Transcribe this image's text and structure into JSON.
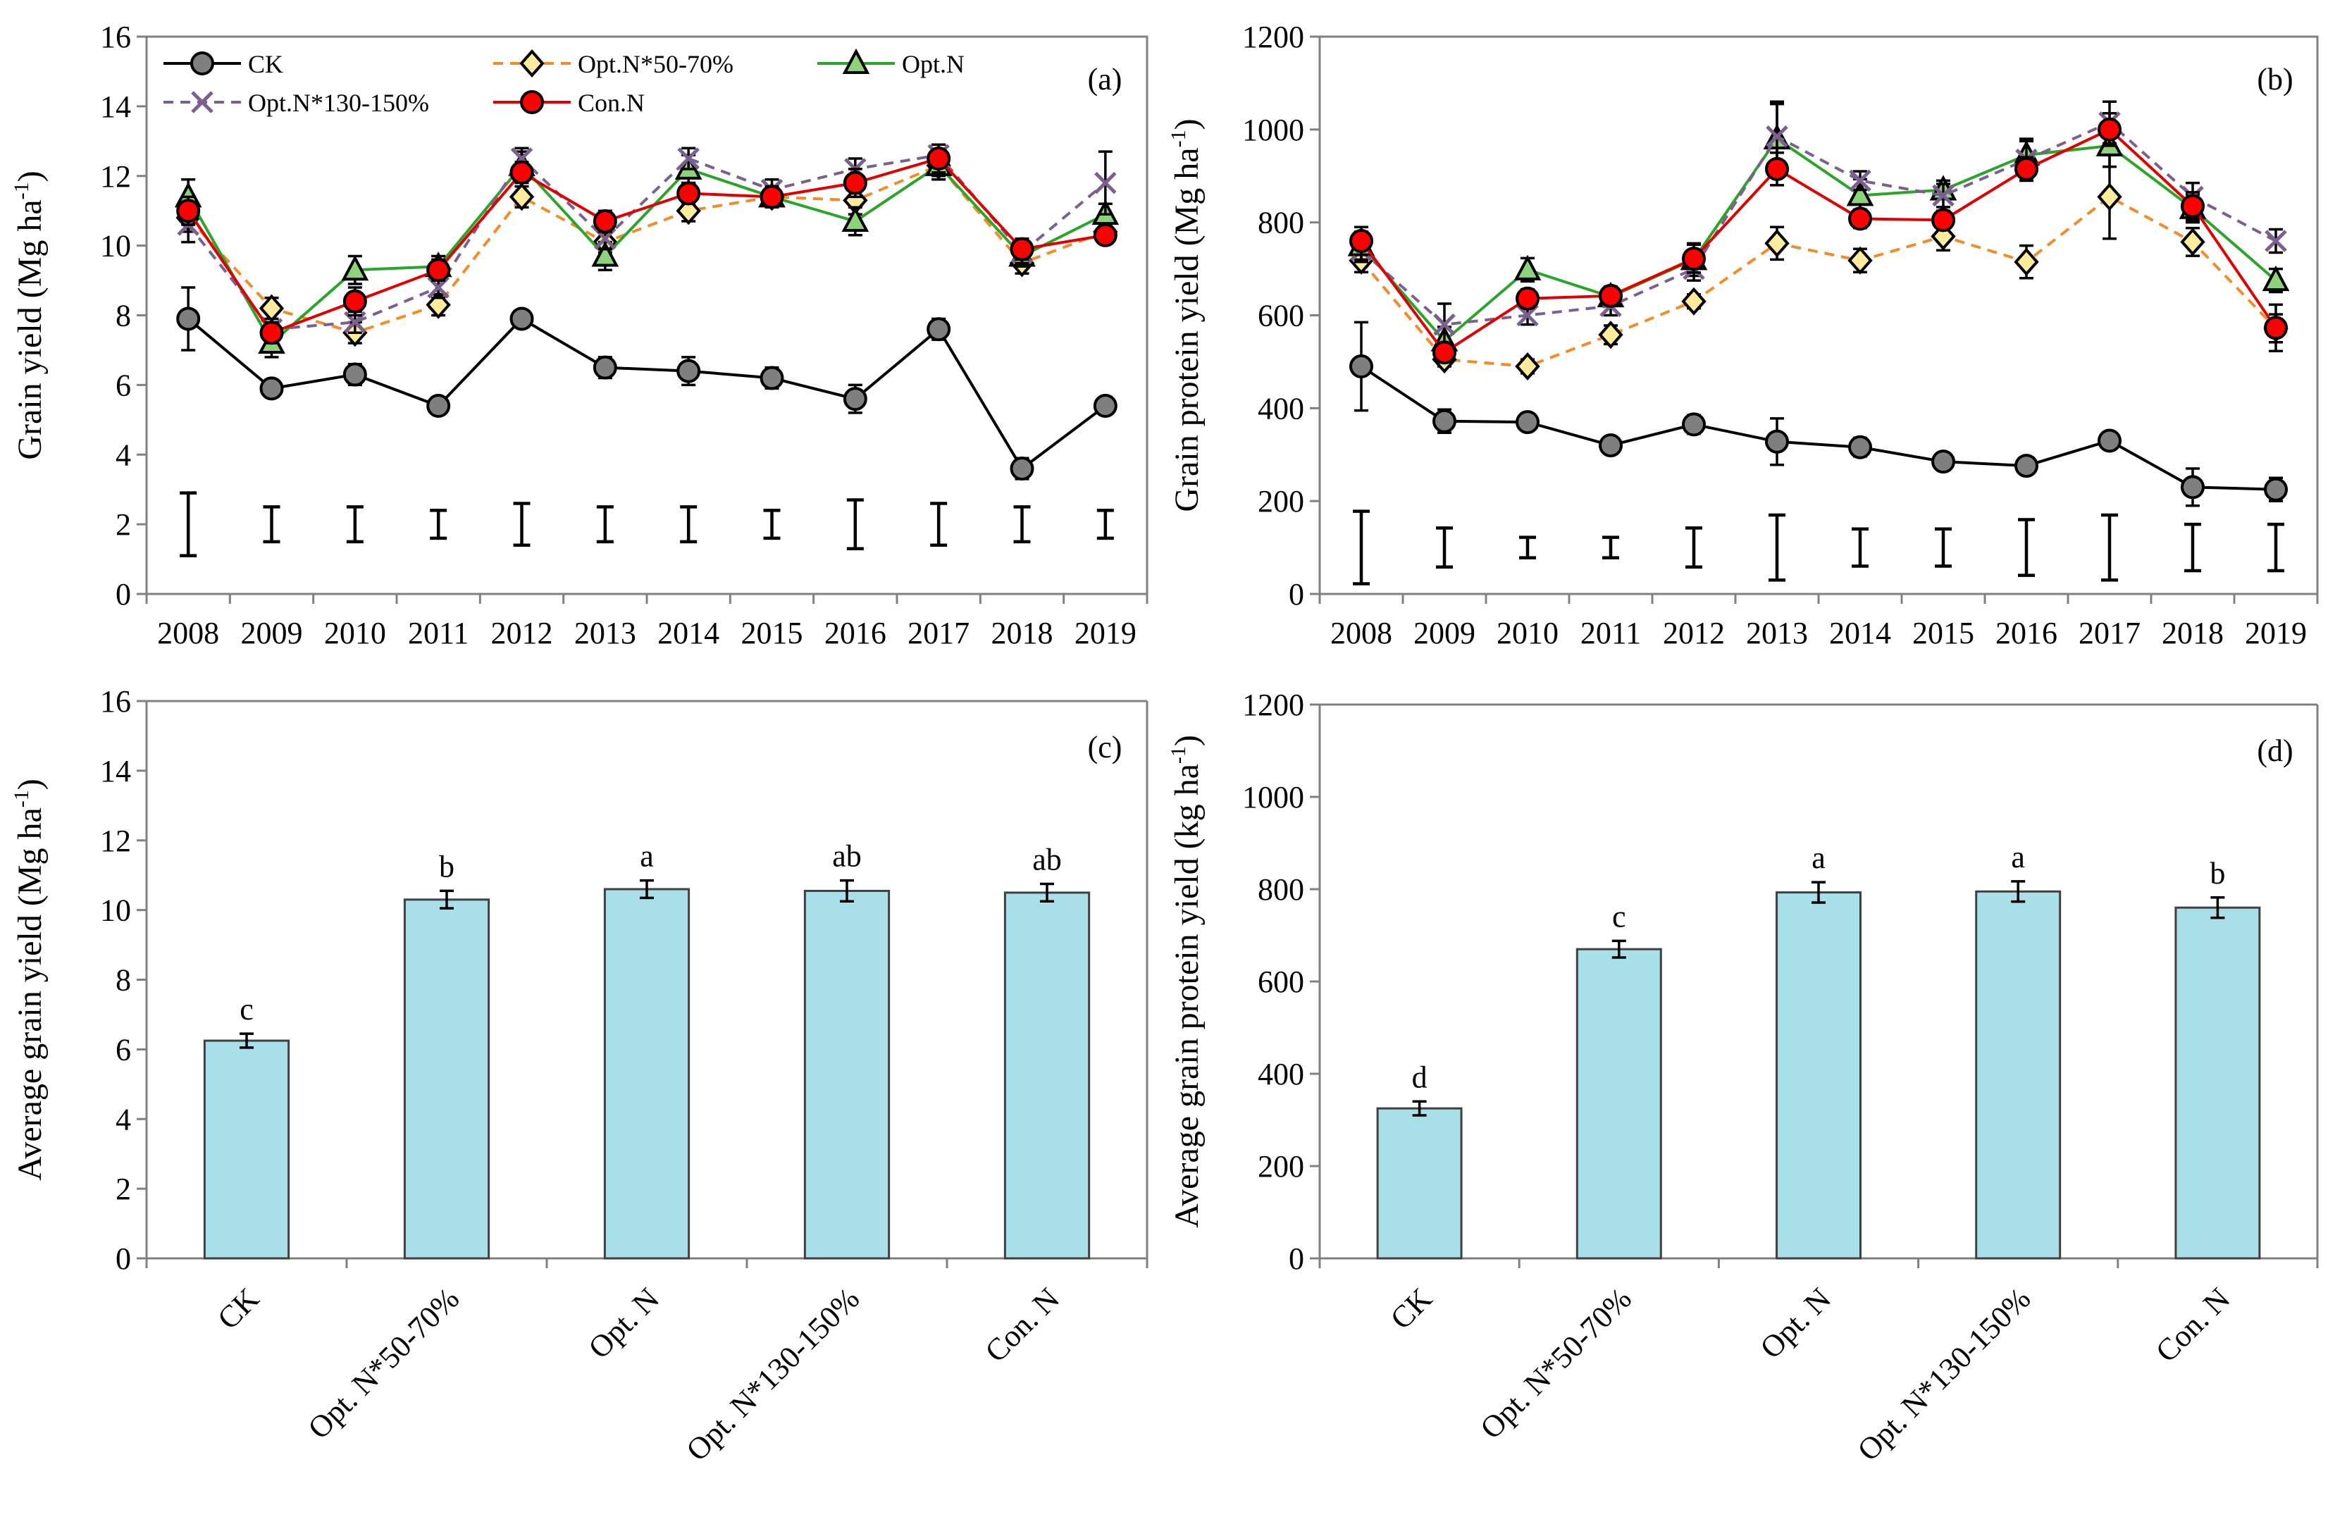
{
  "colors": {
    "ck": "#7f7f7f",
    "low": "#ffeb9c",
    "low_line": "#f28c28",
    "opt": "#8fd27c",
    "opt_line": "#2aa52a",
    "high": "#7a5f8f",
    "con": "#ff0000",
    "con_line": "#e00000",
    "bar": "#a8dfe8",
    "axis": "#808080",
    "black": "#000000"
  },
  "chart_data": [
    {
      "id": "a",
      "type": "line",
      "panel_label": "(a)",
      "ylabel_main": "Grain yield (Mg ha",
      "ylabel_sup": "-1",
      "ylabel_close": ")",
      "ylim": [
        0,
        16
      ],
      "yticks": [
        "0",
        "2",
        "4",
        "6",
        "8",
        "10",
        "12",
        "14",
        "16"
      ],
      "categories": [
        "2008",
        "2009",
        "2010",
        "2011",
        "2012",
        "2013",
        "2014",
        "2015",
        "2016",
        "2017",
        "2018",
        "2019"
      ],
      "series": [
        {
          "name": "CK",
          "values": [
            7.9,
            5.9,
            6.3,
            5.4,
            7.9,
            6.5,
            6.4,
            6.2,
            5.6,
            7.6,
            3.6,
            5.4
          ],
          "err": [
            0.9,
            0.25,
            0.3,
            0.1,
            0.15,
            0.3,
            0.4,
            0.3,
            0.4,
            0.3,
            0.3,
            0.1
          ]
        },
        {
          "name": "Opt.N*50-70%",
          "values": [
            10.8,
            8.2,
            7.5,
            8.3,
            11.4,
            10.1,
            11.0,
            11.4,
            11.3,
            12.3,
            9.5,
            10.4
          ],
          "err": [
            0.4,
            0.3,
            0.3,
            0.3,
            0.3,
            0.3,
            0.3,
            0.3,
            0.4,
            0.3,
            0.3,
            0.3
          ]
        },
        {
          "name": "Opt.N",
          "values": [
            11.4,
            7.2,
            9.3,
            9.4,
            12.3,
            9.7,
            12.2,
            11.4,
            10.7,
            12.3,
            9.7,
            10.9
          ],
          "err": [
            0.5,
            0.4,
            0.4,
            0.3,
            0.4,
            0.4,
            0.4,
            0.3,
            0.4,
            0.4,
            0.3,
            0.3
          ]
        },
        {
          "name": "Opt.N*130-150%",
          "values": [
            10.6,
            7.6,
            7.8,
            8.8,
            12.5,
            10.2,
            12.5,
            11.6,
            12.2,
            12.6,
            9.8,
            11.8
          ],
          "err": [
            0.5,
            0.3,
            0.3,
            0.3,
            0.3,
            0.3,
            0.3,
            0.3,
            0.3,
            0.3,
            0.3,
            0.9
          ]
        },
        {
          "name": "Con.N",
          "values": [
            11.0,
            7.5,
            8.4,
            9.3,
            12.1,
            10.7,
            11.5,
            11.4,
            11.8,
            12.5,
            9.9,
            10.3
          ],
          "err": [
            0.4,
            0.3,
            0.4,
            0.3,
            0.3,
            0.3,
            0.3,
            0.3,
            0.4,
            0.4,
            0.3,
            0.2
          ]
        }
      ],
      "lsd": [
        [
          1.1,
          2.9
        ],
        [
          1.5,
          2.5
        ],
        [
          1.5,
          2.5
        ],
        [
          1.6,
          2.4
        ],
        [
          1.4,
          2.6
        ],
        [
          1.5,
          2.5
        ],
        [
          1.5,
          2.5
        ],
        [
          1.6,
          2.4
        ],
        [
          1.3,
          2.7
        ],
        [
          1.4,
          2.6
        ],
        [
          1.5,
          2.5
        ],
        [
          1.6,
          2.4
        ]
      ]
    },
    {
      "id": "b",
      "type": "line",
      "panel_label": "(b)",
      "ylabel_main": "Grain protein yield (Mg ha",
      "ylabel_sup": "-1",
      "ylabel_close": ")",
      "ylim": [
        0,
        1200
      ],
      "yticks": [
        "0",
        "200",
        "400",
        "600",
        "800",
        "1000",
        "1200"
      ],
      "categories": [
        "2008",
        "2009",
        "2010",
        "2011",
        "2012",
        "2013",
        "2014",
        "2015",
        "2016",
        "2017",
        "2018",
        "2019"
      ],
      "series": [
        {
          "name": "CK",
          "values": [
            490,
            372,
            370,
            320,
            365,
            328,
            316,
            285,
            276,
            330,
            230,
            225
          ],
          "err": [
            95,
            25,
            10,
            10,
            20,
            50,
            20,
            15,
            10,
            10,
            40,
            25
          ]
        },
        {
          "name": "Opt.N*50-70%",
          "values": [
            718,
            505,
            490,
            558,
            630,
            755,
            718,
            770,
            715,
            855,
            758,
            572
          ],
          "err": [
            25,
            15,
            15,
            20,
            15,
            35,
            25,
            30,
            35,
            90,
            30,
            30
          ]
        },
        {
          "name": "Opt.N",
          "values": [
            750,
            545,
            698,
            640,
            720,
            980,
            858,
            870,
            945,
            965,
            830,
            675
          ],
          "err": [
            30,
            30,
            25,
            20,
            35,
            75,
            35,
            20,
            30,
            45,
            30,
            25
          ]
        },
        {
          "name": "Opt.N*130-150%",
          "values": [
            740,
            580,
            600,
            620,
            700,
            985,
            890,
            858,
            935,
            1015,
            855,
            760
          ],
          "err": [
            25,
            45,
            20,
            20,
            25,
            75,
            20,
            25,
            45,
            45,
            30,
            25
          ]
        },
        {
          "name": "Con.N",
          "values": [
            760,
            520,
            636,
            642,
            722,
            915,
            808,
            805,
            915,
            1000,
            835,
            573
          ],
          "err": [
            30,
            20,
            20,
            20,
            30,
            35,
            20,
            20,
            25,
            35,
            30,
            50
          ]
        }
      ],
      "lsd": [
        [
          22,
          178
        ],
        [
          58,
          142
        ],
        [
          78,
          122
        ],
        [
          78,
          122
        ],
        [
          58,
          142
        ],
        [
          30,
          170
        ],
        [
          60,
          140
        ],
        [
          60,
          140
        ],
        [
          40,
          160
        ],
        [
          30,
          170
        ],
        [
          50,
          150
        ],
        [
          50,
          150
        ]
      ]
    },
    {
      "id": "c",
      "type": "bar",
      "panel_label": "(c)",
      "ylabel_main": "Average grain yield (Mg ha",
      "ylabel_sup": "-1",
      "ylabel_close": ")",
      "ylim": [
        0,
        16
      ],
      "yticks": [
        "0",
        "2",
        "4",
        "6",
        "8",
        "10",
        "12",
        "14",
        "16"
      ],
      "categories": [
        "CK",
        "Opt. N*50-70%",
        "Opt. N",
        "Opt. N*130-150%",
        "Con. N"
      ],
      "values": [
        6.25,
        10.3,
        10.6,
        10.55,
        10.5
      ],
      "err": [
        0.2,
        0.25,
        0.25,
        0.3,
        0.25
      ],
      "letters": [
        "c",
        "b",
        "a",
        "ab",
        "ab"
      ]
    },
    {
      "id": "d",
      "type": "bar",
      "panel_label": "(d)",
      "ylabel_main": "Average grain protein yield (kg ha",
      "ylabel_sup": "-1",
      "ylabel_close": ")",
      "ylim": [
        0,
        1200
      ],
      "yticks": [
        "0",
        "200",
        "400",
        "600",
        "800",
        "1000",
        "1200"
      ],
      "categories": [
        "CK",
        "Opt. N*50-70%",
        "Opt. N",
        "Opt. N*130-150%",
        "Con. N"
      ],
      "values": [
        325,
        670,
        793,
        795,
        760
      ],
      "err": [
        15,
        18,
        22,
        22,
        22
      ],
      "letters": [
        "d",
        "c",
        "a",
        "a",
        "b"
      ]
    }
  ]
}
